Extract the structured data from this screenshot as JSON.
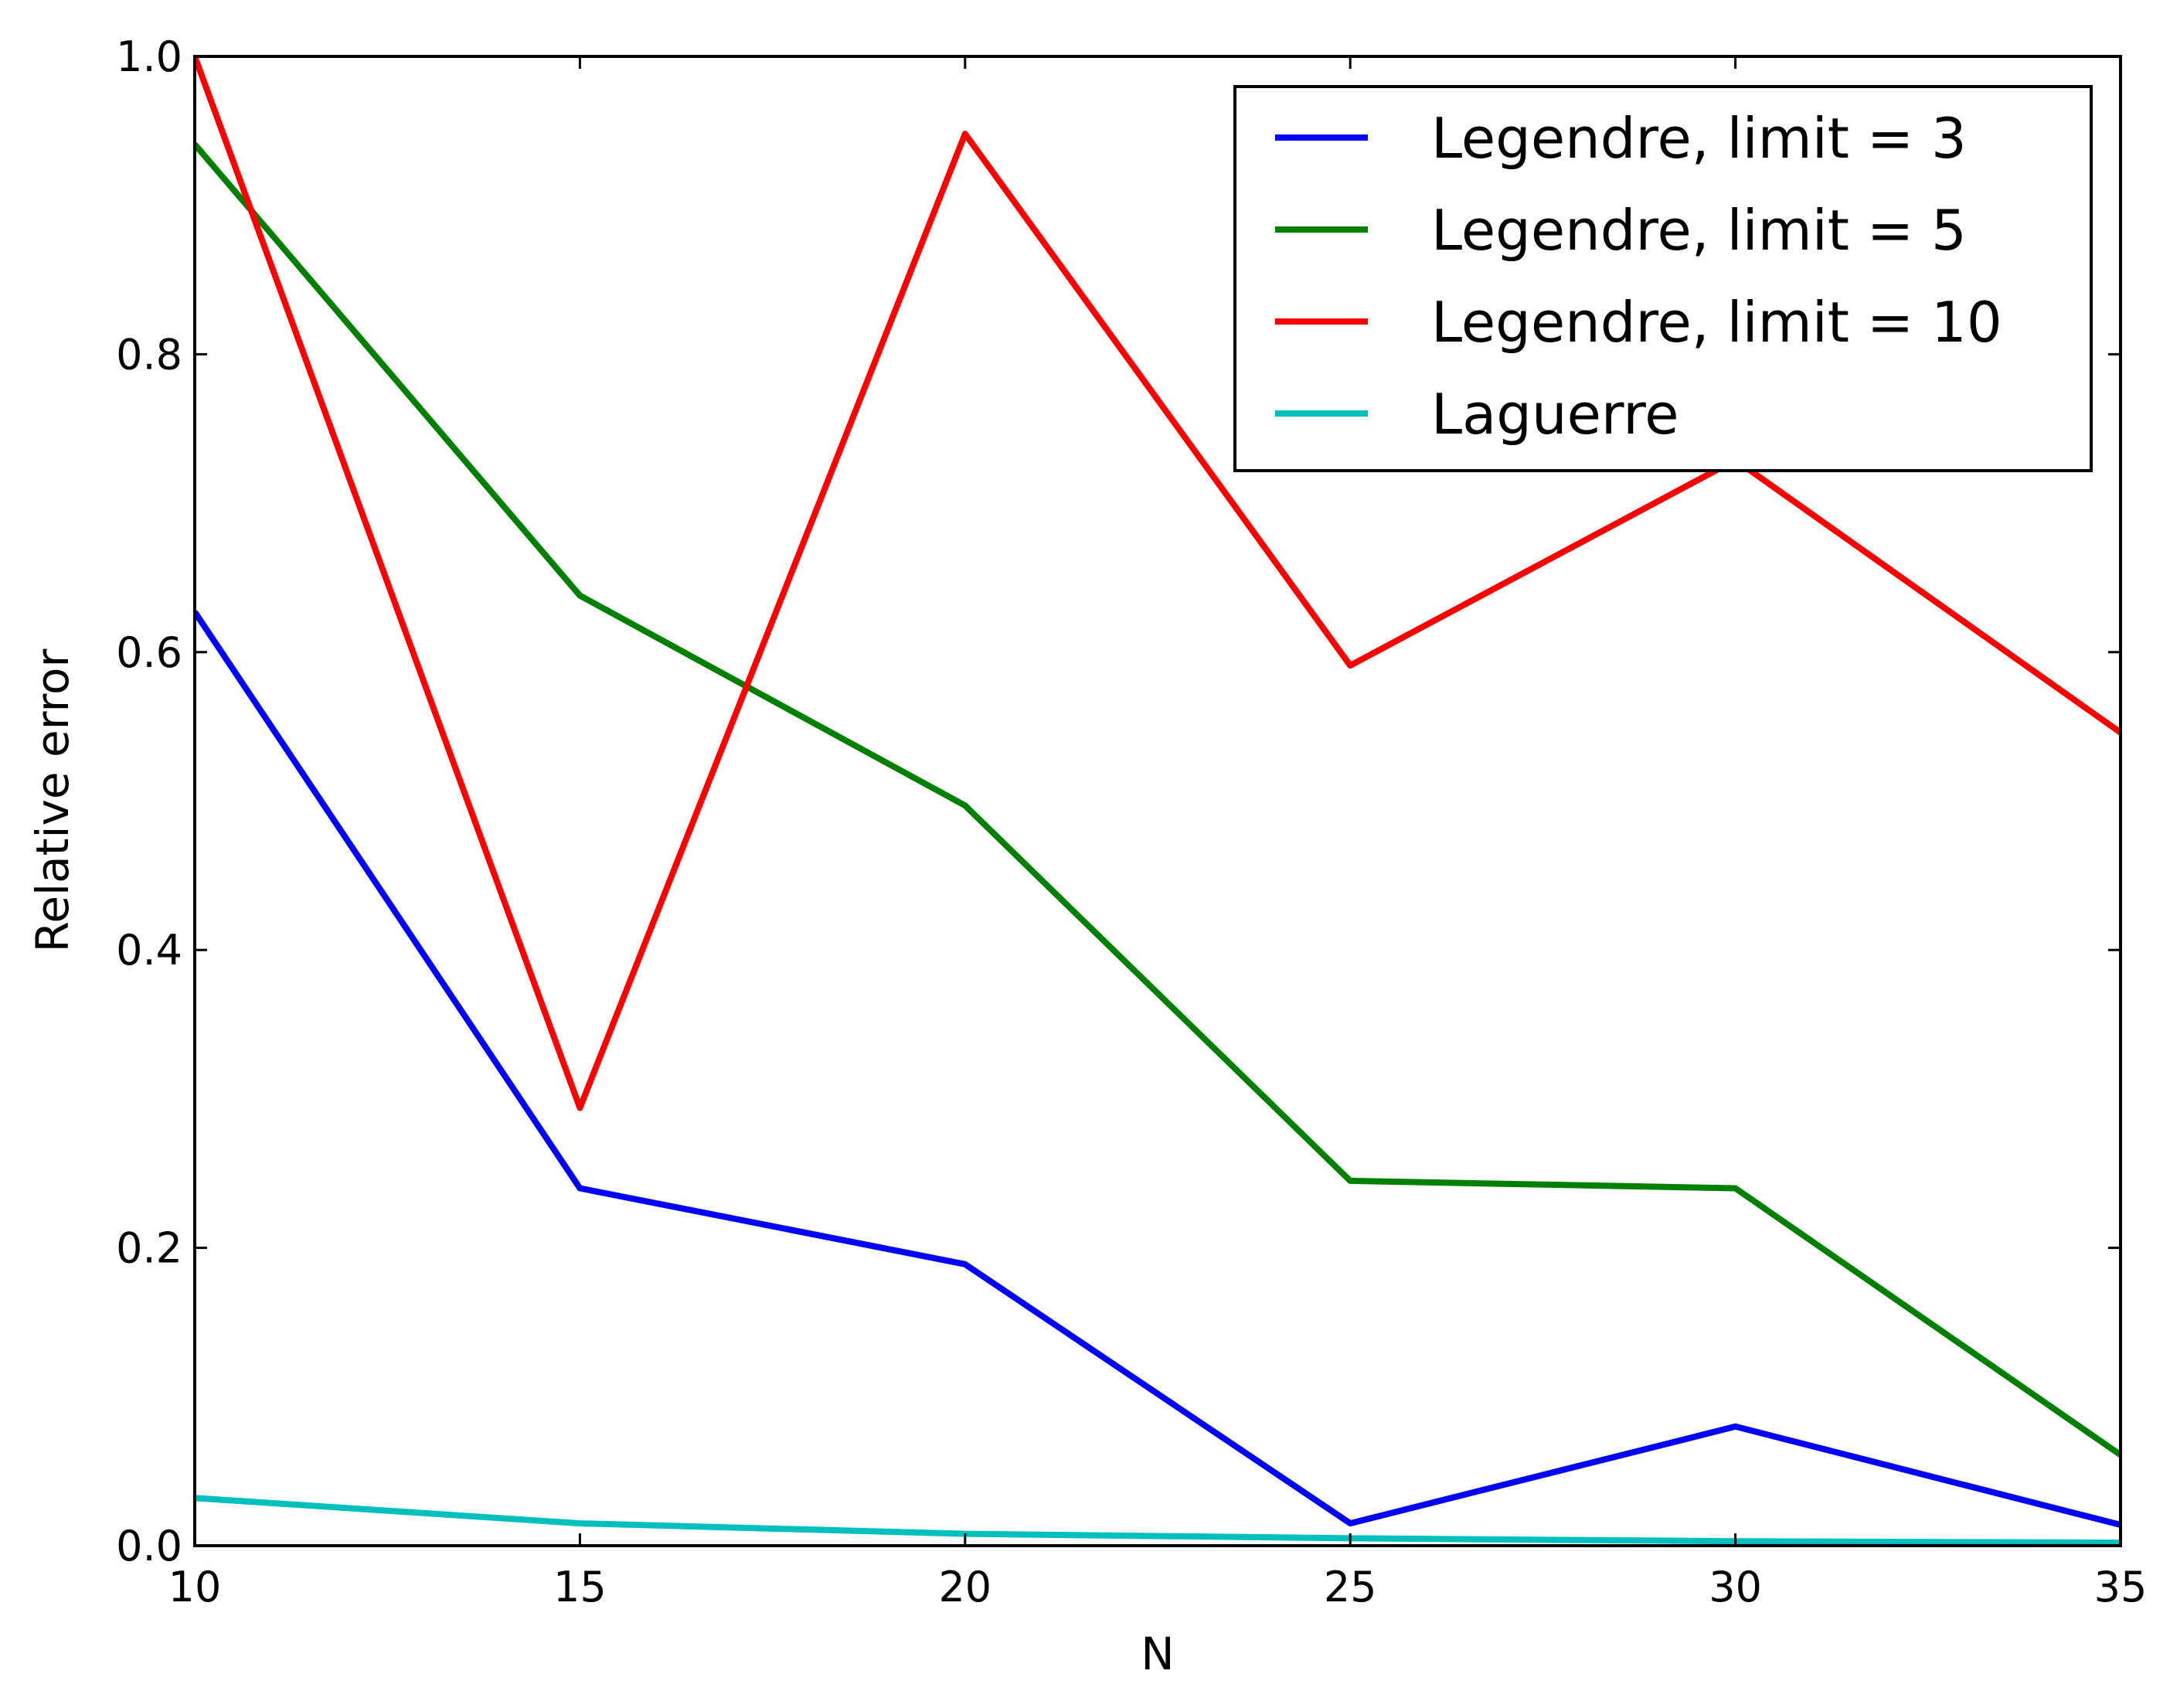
{
  "chart_data": {
    "type": "line",
    "title": "",
    "xlabel": "N",
    "ylabel": "Relative error",
    "xlim": [
      10,
      35
    ],
    "ylim": [
      0.0,
      1.0
    ],
    "xticks": [
      10,
      15,
      20,
      25,
      30,
      35
    ],
    "xtick_labels": [
      "10",
      "15",
      "20",
      "25",
      "30",
      "35"
    ],
    "yticks": [
      0.0,
      0.2,
      0.4,
      0.6,
      0.8,
      1.0
    ],
    "ytick_labels": [
      "0.0",
      "0.2",
      "0.4",
      "0.6",
      "0.8",
      "1.0"
    ],
    "grid": false,
    "legend_position": "top-right",
    "x": [
      10,
      15,
      20,
      25,
      30,
      35
    ],
    "series": [
      {
        "name": "Legendre, limit = 3",
        "color": "#0000ff",
        "values": [
          0.627,
          0.24,
          0.189,
          0.015,
          0.08,
          0.014
        ]
      },
      {
        "name": "Legendre, limit = 5",
        "color": "#008000",
        "values": [
          0.941,
          0.638,
          0.497,
          0.245,
          0.24,
          0.061
        ]
      },
      {
        "name": "Legendre, limit = 10",
        "color": "#ff0000",
        "values": [
          1.0,
          0.294,
          0.948,
          0.591,
          0.729,
          0.546
        ]
      },
      {
        "name": "Laguerre",
        "color": "#00bfbf",
        "values": [
          0.032,
          0.015,
          0.008,
          0.005,
          0.003,
          0.002
        ]
      }
    ]
  }
}
